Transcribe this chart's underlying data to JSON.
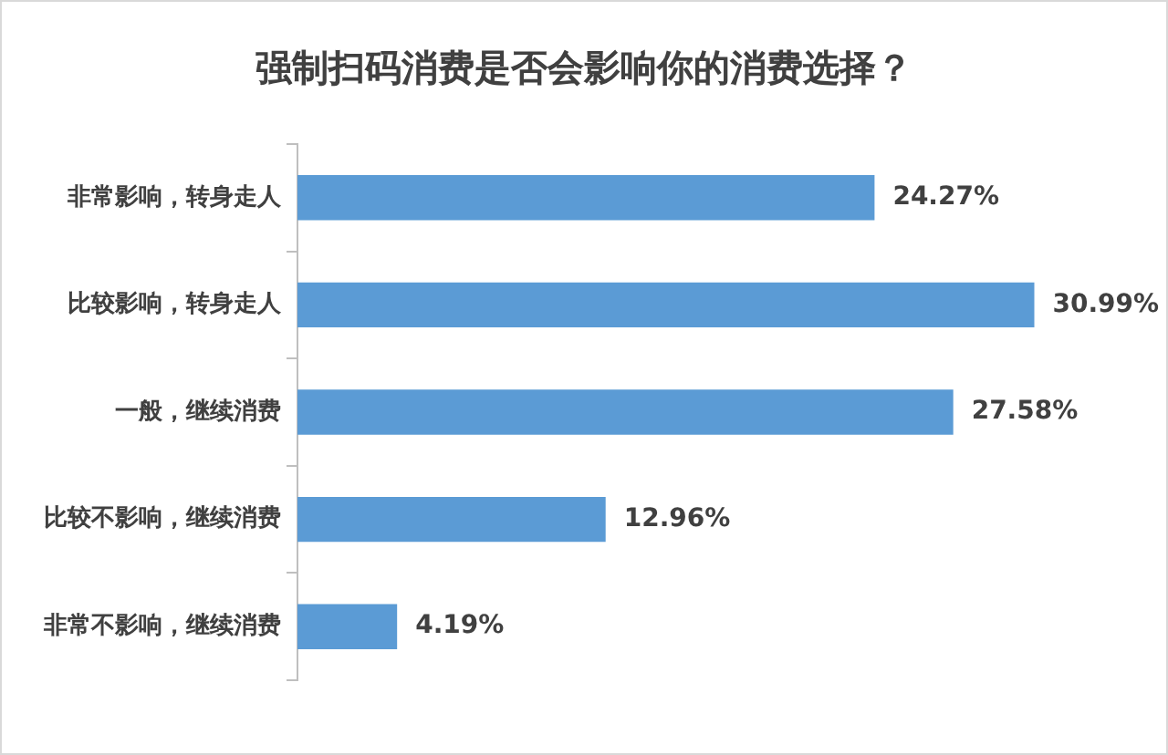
{
  "chart_data": {
    "type": "bar",
    "orientation": "horizontal",
    "title": "强制扫码消费是否会影响你的消费选择？",
    "categories": [
      "非常影响，转身走人",
      "比较影响，转身走人",
      "一般，继续消费",
      "比较不影响，继续消费",
      "非常不影响，继续消费"
    ],
    "values": [
      24.27,
      30.99,
      27.58,
      12.96,
      4.19
    ],
    "value_labels": [
      "24.27%",
      "30.99%",
      "27.58%",
      "12.96%",
      "4.19%"
    ],
    "color": "#5b9bd5",
    "legend": false
  }
}
